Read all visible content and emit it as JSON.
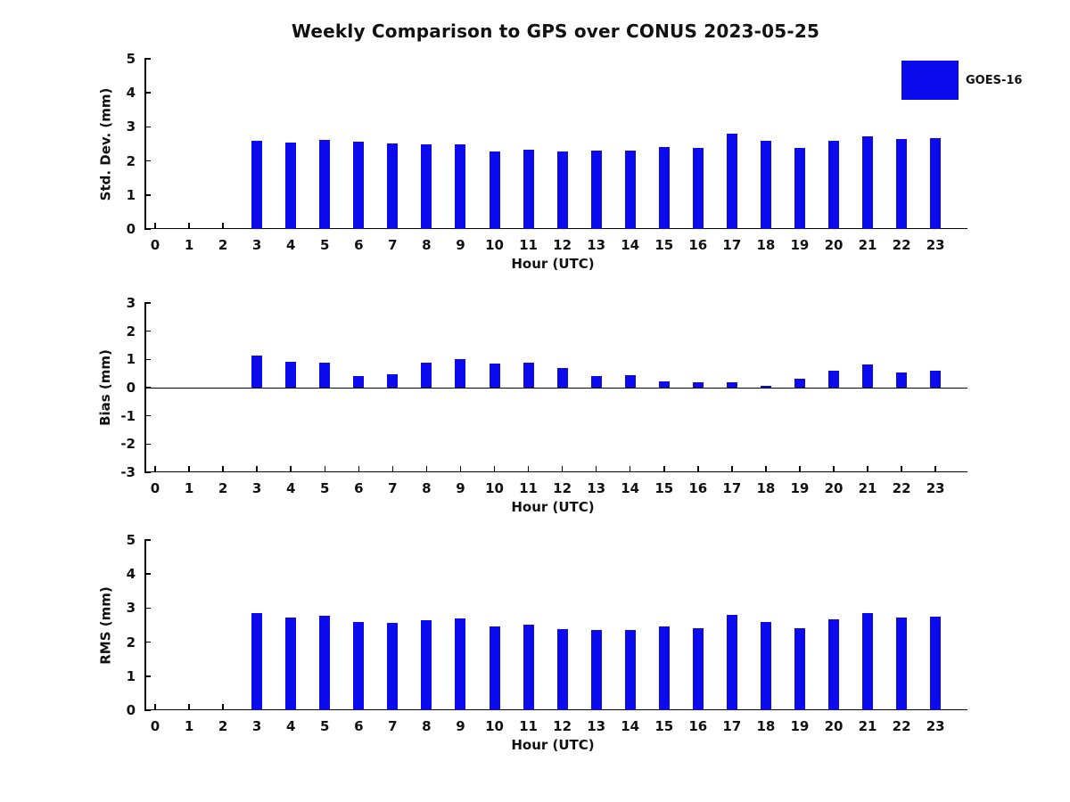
{
  "title": "Weekly Comparison to GPS over CONUS 2023-05-25",
  "legend": {
    "label": "GOES-16",
    "color": "#0b0bee"
  },
  "colors": {
    "bar": "#0b0bee",
    "axis": "#000000"
  },
  "chart_data": [
    {
      "type": "bar",
      "title": "",
      "ylabel": "Std. Dev. (mm)",
      "xlabel": "Hour (UTC)",
      "ylim": [
        0,
        5
      ],
      "yticks": [
        0,
        1,
        2,
        3,
        4,
        5
      ],
      "grid": false,
      "legend_position": "upper-right",
      "series_name": "GOES-16",
      "categories": [
        "0",
        "1",
        "2",
        "3",
        "4",
        "5",
        "6",
        "7",
        "8",
        "9",
        "10",
        "11",
        "12",
        "13",
        "14",
        "15",
        "16",
        "17",
        "18",
        "19",
        "20",
        "21",
        "22",
        "23"
      ],
      "values": [
        null,
        null,
        null,
        2.6,
        2.55,
        2.62,
        2.57,
        2.52,
        2.49,
        2.5,
        2.29,
        2.33,
        2.28,
        2.31,
        2.31,
        2.4,
        2.37,
        2.81,
        2.58,
        2.38,
        2.59,
        2.72,
        2.64,
        2.66
      ]
    },
    {
      "type": "bar",
      "title": "",
      "ylabel": "Bias (mm)",
      "xlabel": "Hour (UTC)",
      "ylim": [
        -3,
        3
      ],
      "yticks": [
        -3,
        -2,
        -1,
        0,
        1,
        2,
        3
      ],
      "grid": false,
      "series_name": "GOES-16",
      "categories": [
        "0",
        "1",
        "2",
        "3",
        "4",
        "5",
        "6",
        "7",
        "8",
        "9",
        "10",
        "11",
        "12",
        "13",
        "14",
        "15",
        "16",
        "17",
        "18",
        "19",
        "20",
        "21",
        "22",
        "23"
      ],
      "values": [
        null,
        null,
        null,
        1.15,
        0.92,
        0.88,
        0.4,
        0.48,
        0.88,
        1.0,
        0.85,
        0.9,
        0.7,
        0.4,
        0.44,
        0.23,
        0.18,
        0.19,
        0.07,
        0.33,
        0.6,
        0.82,
        0.55,
        0.6
      ]
    },
    {
      "type": "bar",
      "title": "",
      "ylabel": "RMS (mm)",
      "xlabel": "Hour (UTC)",
      "ylim": [
        0,
        5
      ],
      "yticks": [
        0,
        1,
        2,
        3,
        4,
        5
      ],
      "grid": false,
      "series_name": "GOES-16",
      "categories": [
        "0",
        "1",
        "2",
        "3",
        "4",
        "5",
        "6",
        "7",
        "8",
        "9",
        "10",
        "11",
        "12",
        "13",
        "14",
        "15",
        "16",
        "17",
        "18",
        "19",
        "20",
        "21",
        "22",
        "23"
      ],
      "values": [
        null,
        null,
        null,
        2.85,
        2.72,
        2.77,
        2.6,
        2.57,
        2.65,
        2.7,
        2.45,
        2.52,
        2.37,
        2.35,
        2.35,
        2.45,
        2.41,
        2.8,
        2.59,
        2.41,
        2.67,
        2.85,
        2.73,
        2.76
      ]
    }
  ]
}
